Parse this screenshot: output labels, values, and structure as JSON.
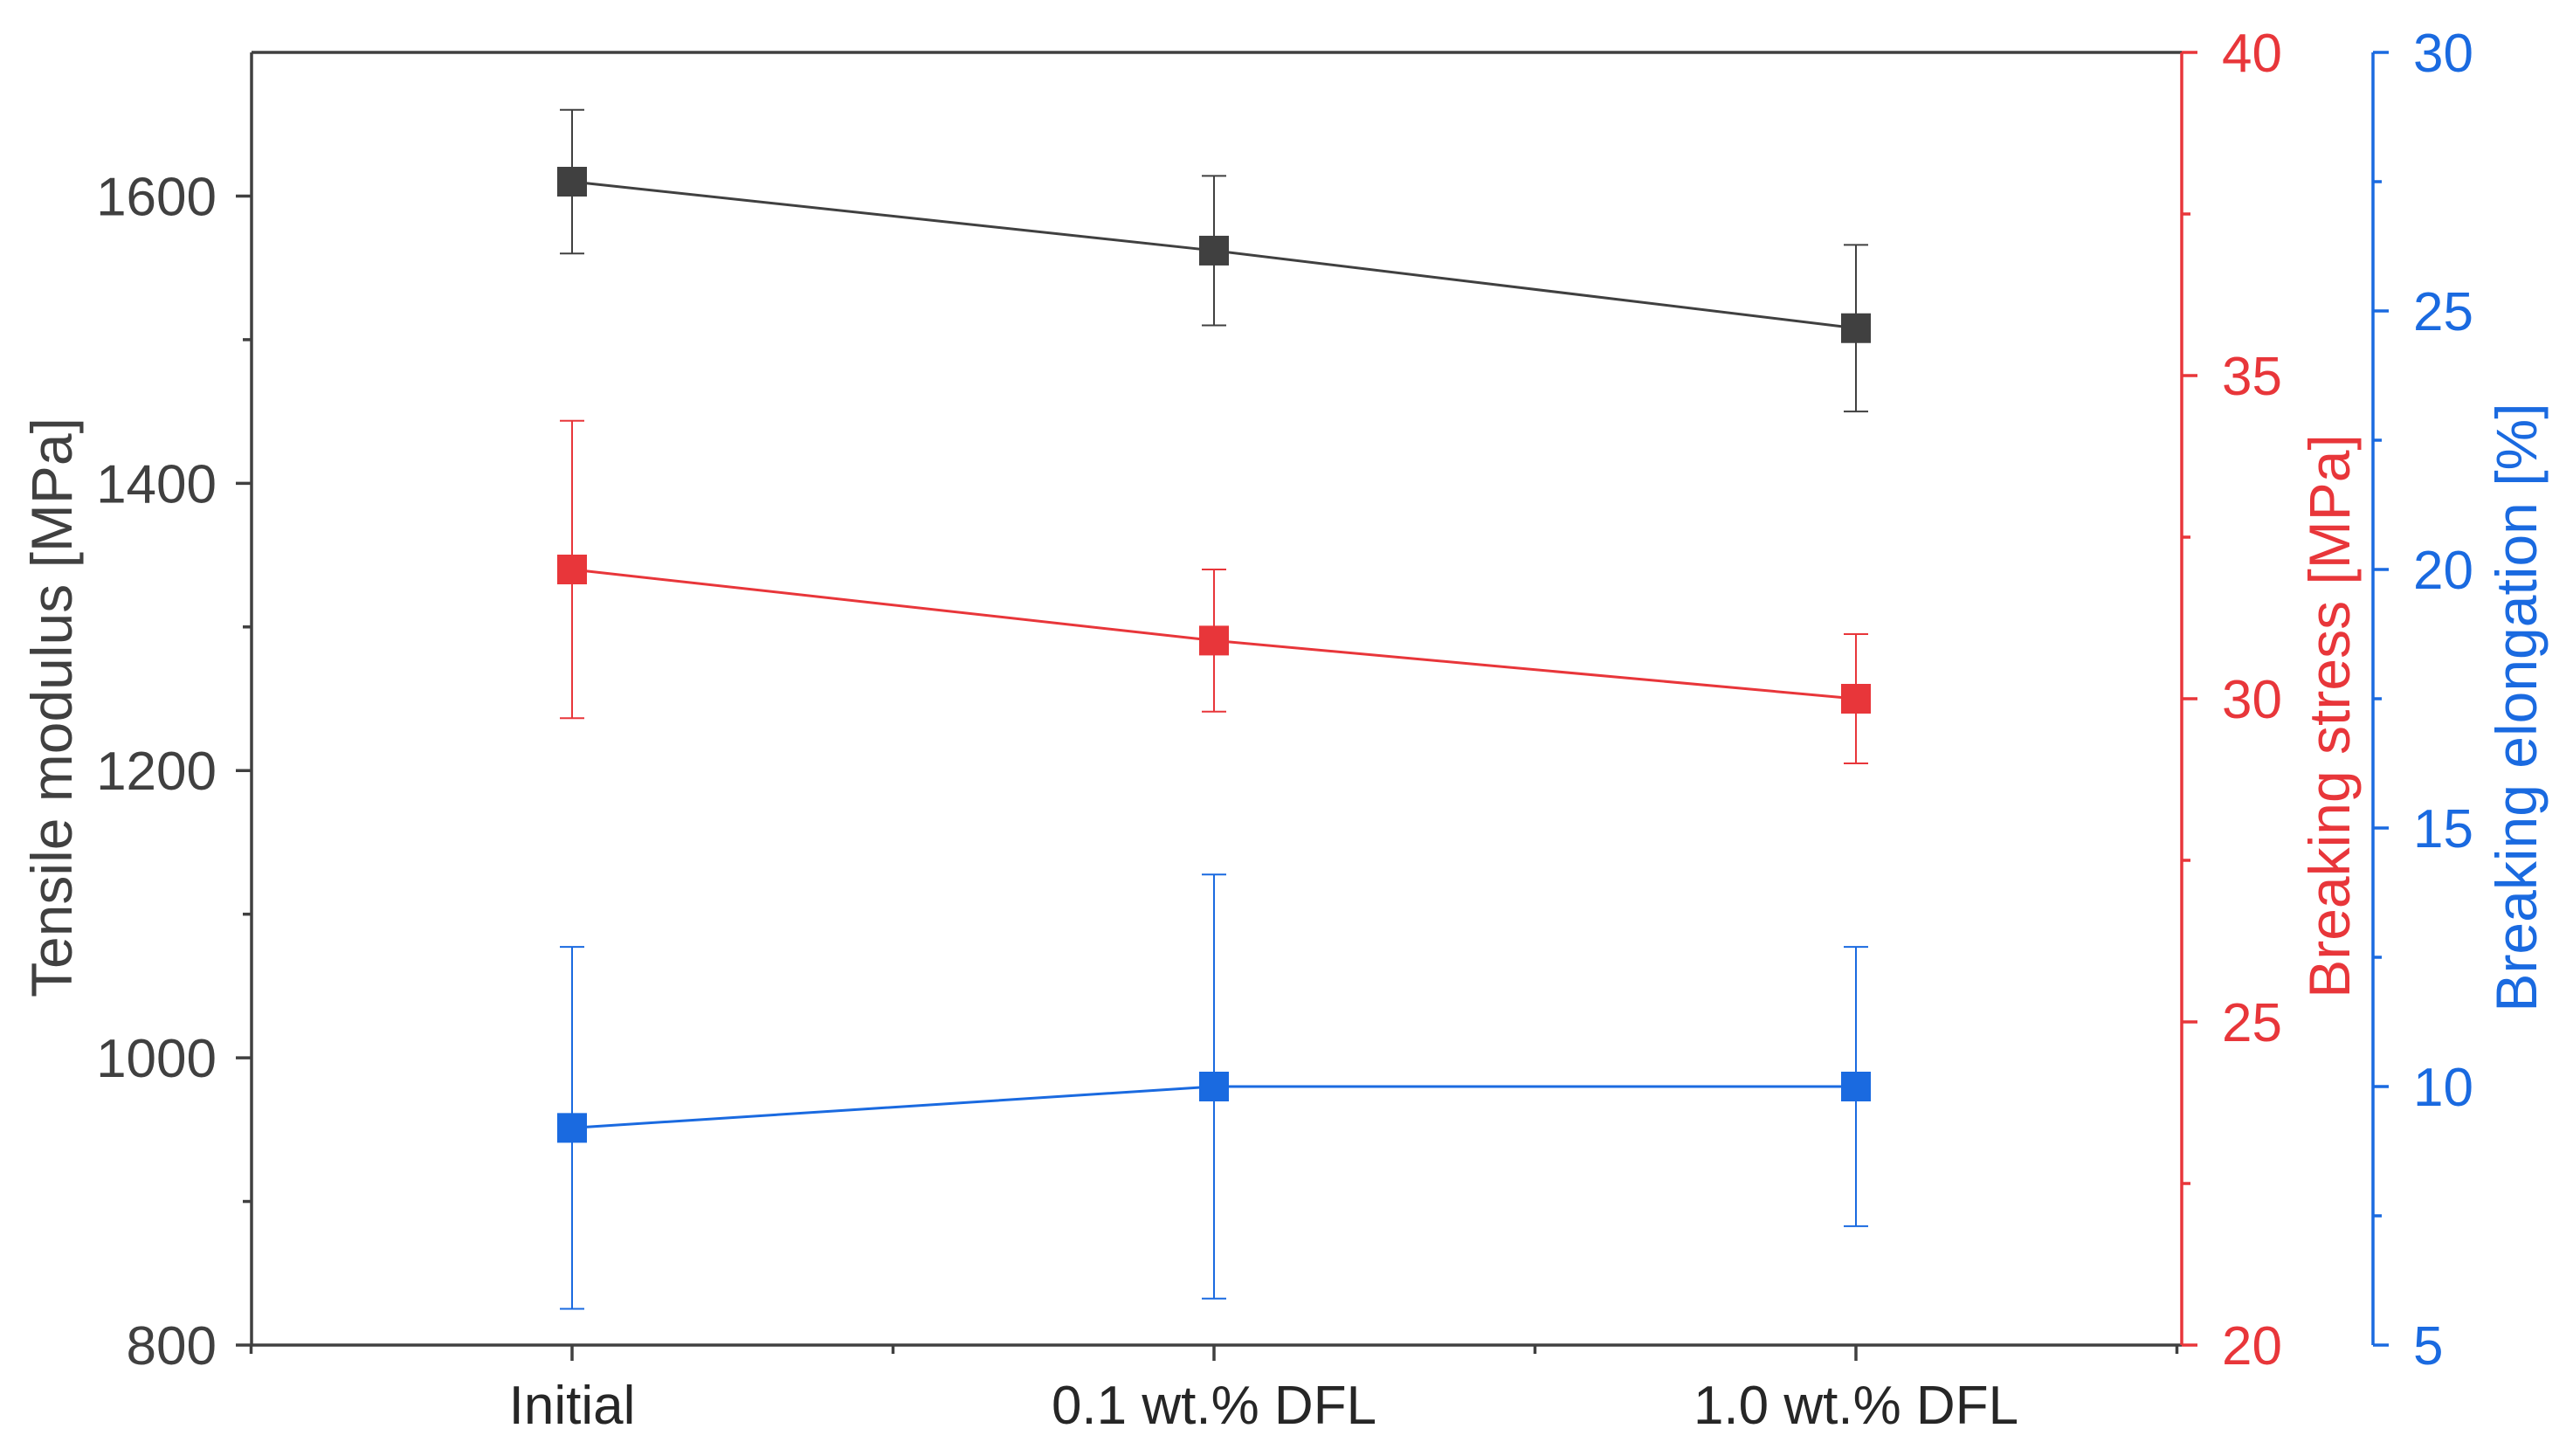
{
  "chart_data": {
    "type": "line",
    "title": "",
    "categories": [
      "Initial",
      "0.1 wt.% DFL",
      "1.0 wt.% DFL"
    ],
    "xlabel": "",
    "axes": {
      "left": {
        "label": "Tensile modulus [MPa]",
        "ylim": [
          800,
          1700
        ],
        "ticks": [
          800,
          1000,
          1200,
          1400,
          1600
        ],
        "minor_ticks": [
          900,
          1100,
          1300,
          1500
        ],
        "color": "#404040"
      },
      "right1": {
        "label": "Breaking stress [MPa]",
        "ylim": [
          20,
          40
        ],
        "ticks": [
          20,
          25,
          30,
          35,
          40
        ],
        "minor_ticks": [
          22.5,
          27.5,
          32.5,
          37.5
        ],
        "color": "#e8363a"
      },
      "right2": {
        "label": "Breaking elongation [%]",
        "ylim": [
          5,
          30
        ],
        "ticks": [
          5,
          10,
          15,
          20,
          25,
          30
        ],
        "minor_ticks": [
          7.5,
          12.5,
          17.5,
          22.5,
          27.5
        ],
        "color": "#1a6ae0"
      }
    },
    "series": [
      {
        "name": "Tensile modulus",
        "axis": "left",
        "color": "#404040",
        "values": [
          1610,
          1562,
          1508
        ],
        "errors": [
          50,
          52,
          58
        ]
      },
      {
        "name": "Breaking stress",
        "axis": "right1",
        "color": "#e8363a",
        "values": [
          32.0,
          30.9,
          30.0
        ],
        "errors": [
          2.3,
          1.1,
          1.0
        ]
      },
      {
        "name": "Breaking elongation",
        "axis": "right2",
        "color": "#1a6ae0",
        "values": [
          9.2,
          10.0,
          10.0
        ],
        "errors": [
          3.5,
          4.1,
          2.7
        ]
      }
    ]
  }
}
